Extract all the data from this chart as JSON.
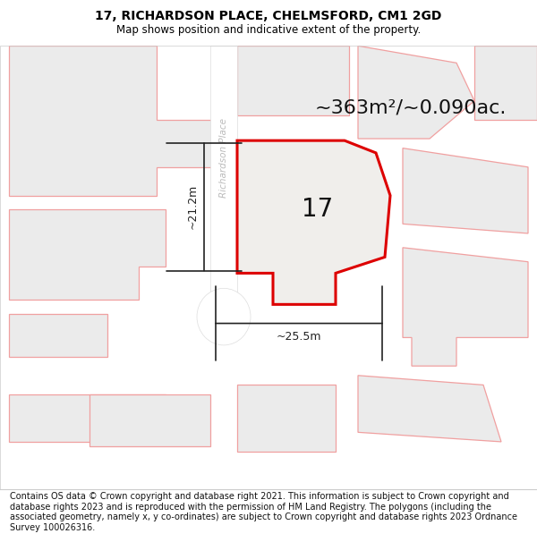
{
  "title": "17, RICHARDSON PLACE, CHELMSFORD, CM1 2GD",
  "subtitle": "Map shows position and indicative extent of the property.",
  "area_text": "~363m²/~0.090ac.",
  "label_17": "17",
  "dim_width": "~25.5m",
  "dim_height": "~21.2m",
  "street_label": "Richardson Place",
  "copyright_text": "Contains OS data © Crown copyright and database right 2021. This information is subject to Crown copyright and database rights 2023 and is reproduced with the permission of HM Land Registry. The polygons (including the associated geometry, namely x, y co-ordinates) are subject to Crown copyright and database rights 2023 Ordnance Survey 100026316.",
  "bg_color": "#ffffff",
  "map_bg": "#f7f6f4",
  "plot_fill": "#f0eeeb",
  "plot_edge": "#dd0000",
  "neighbor_fill": "#ebebeb",
  "neighbor_edge": "#f0a0a0",
  "road_fill": "#ffffff",
  "title_fontsize": 10,
  "subtitle_fontsize": 8.5,
  "area_fontsize": 16,
  "label_fontsize": 20,
  "copyright_fontsize": 7.0,
  "street_label_color": "#bbbbbb",
  "dim_color": "#222222"
}
